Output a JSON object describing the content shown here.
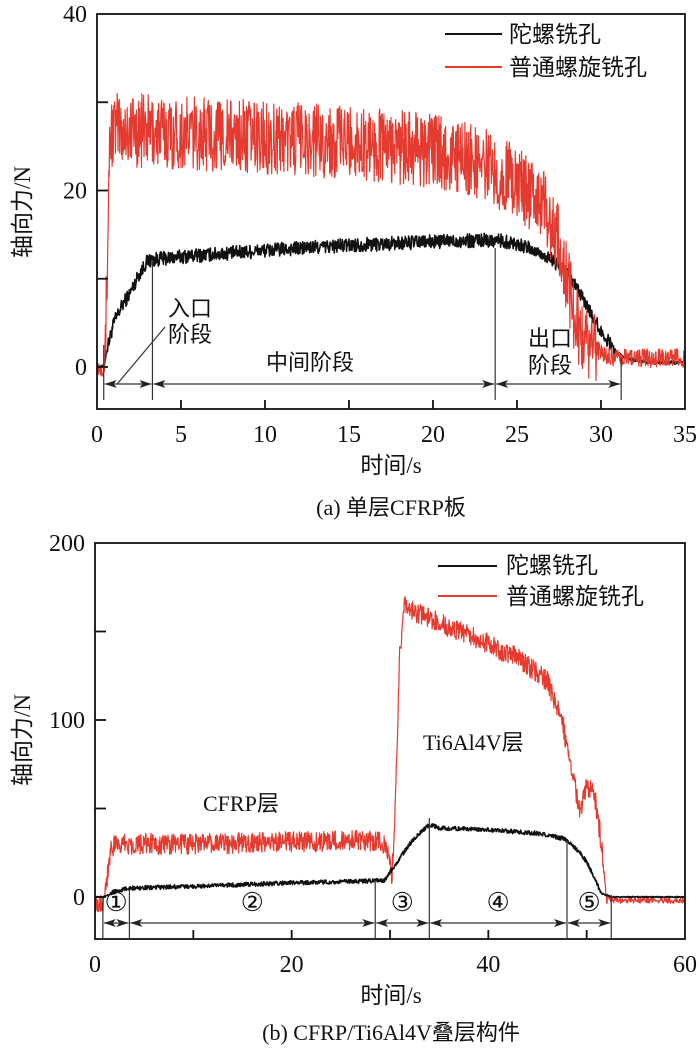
{
  "chart_data": [
    {
      "type": "line",
      "panel": "a",
      "caption": "(a) 单层CFRP板",
      "xlabel": "时间/s",
      "ylabel": "轴向力/N",
      "xlim": [
        0,
        35
      ],
      "ylim": [
        -5,
        40
      ],
      "xticks": [
        0,
        5,
        10,
        15,
        20,
        25,
        30,
        35
      ],
      "yticks": [
        0,
        20,
        40
      ],
      "grid": false,
      "legend": {
        "position": "top-right",
        "entries": [
          "陀螺铣孔",
          "普通螺旋铣孔"
        ]
      },
      "series": [
        {
          "name": "陀螺铣孔",
          "color": "#111111",
          "noise": 0.8,
          "points": [
            [
              0,
              0
            ],
            [
              0.4,
              0
            ],
            [
              0.6,
              2
            ],
            [
              1.0,
              5
            ],
            [
              1.5,
              7
            ],
            [
              2.0,
              8.5
            ],
            [
              2.5,
              10.5
            ],
            [
              3.0,
              12
            ],
            [
              3.5,
              12.2
            ],
            [
              5,
              12.5
            ],
            [
              10,
              13.2
            ],
            [
              15,
              13.8
            ],
            [
              20,
              14.2
            ],
            [
              23.7,
              14.4
            ],
            [
              25,
              14
            ],
            [
              26,
              13.2
            ],
            [
              27,
              12.3
            ],
            [
              28,
              10.5
            ],
            [
              29,
              7.5
            ],
            [
              30,
              4
            ],
            [
              31,
              1.5
            ],
            [
              31.5,
              1
            ],
            [
              33,
              0.5
            ],
            [
              35,
              0.5
            ]
          ]
        },
        {
          "name": "普通螺旋铣孔",
          "color": "#e53a2f",
          "noise": 4.2,
          "points": [
            [
              0,
              0
            ],
            [
              0.45,
              0
            ],
            [
              0.6,
              10
            ],
            [
              0.75,
              26
            ],
            [
              1,
              27
            ],
            [
              5,
              26.5
            ],
            [
              10,
              26
            ],
            [
              15,
              25.5
            ],
            [
              20,
              24.5
            ],
            [
              23,
              23
            ],
            [
              25,
              21
            ],
            [
              26.5,
              18.5
            ],
            [
              27.5,
              14
            ],
            [
              28,
              10
            ],
            [
              28.5,
              5
            ],
            [
              29,
              3
            ],
            [
              30,
              1.6
            ],
            [
              31,
              1
            ],
            [
              35,
              1
            ]
          ]
        }
      ],
      "annotations": [
        {
          "text_lines": [
            "入口",
            "阶段"
          ],
          "stage": "entry",
          "x_range": [
            0.4,
            3.3
          ]
        },
        {
          "text_lines": [
            "中间阶段"
          ],
          "stage": "middle",
          "x_range": [
            3.3,
            23.7
          ]
        },
        {
          "text_lines": [
            "出口",
            "阶段"
          ],
          "stage": "exit",
          "x_range": [
            23.7,
            31.2
          ]
        }
      ]
    },
    {
      "type": "line",
      "panel": "b",
      "caption": "(b) CFRP/Ti6Al4V叠层构件",
      "xlabel": "时间/s",
      "ylabel": "轴向力/N",
      "xlim": [
        0,
        60
      ],
      "ylim": [
        -25,
        200
      ],
      "xticks": [
        0,
        20,
        40,
        60
      ],
      "xminor_ticks": [
        10,
        30,
        50
      ],
      "yticks": [
        0,
        100,
        200
      ],
      "yminor_ticks": [
        50,
        150
      ],
      "grid": false,
      "legend": {
        "position": "top-right",
        "entries": [
          "陀螺铣孔",
          "普通螺旋铣孔"
        ]
      },
      "series": [
        {
          "name": "陀螺铣孔",
          "color": "#111111",
          "noise": 1.2,
          "points": [
            [
              0,
              0
            ],
            [
              0.8,
              0
            ],
            [
              2,
              3
            ],
            [
              3.5,
              5
            ],
            [
              10,
              6
            ],
            [
              20,
              8
            ],
            [
              28,
              9
            ],
            [
              29.5,
              9.5
            ],
            [
              30,
              14
            ],
            [
              31,
              22
            ],
            [
              32,
              30
            ],
            [
              33,
              36
            ],
            [
              34,
              41
            ],
            [
              35,
              39
            ],
            [
              40,
              38
            ],
            [
              45,
              36
            ],
            [
              47.7,
              33
            ],
            [
              49,
              27
            ],
            [
              50,
              20
            ],
            [
              51,
              8
            ],
            [
              51.5,
              2
            ],
            [
              52.5,
              0
            ],
            [
              60,
              0
            ]
          ]
        },
        {
          "name": "普通螺旋铣孔",
          "color": "#e53a2f",
          "noise": 6,
          "points": [
            [
              0,
              -3
            ],
            [
              0.8,
              -3
            ],
            [
              1.2,
              10
            ],
            [
              1.6,
              28
            ],
            [
              3,
              30
            ],
            [
              10,
              30
            ],
            [
              20,
              31
            ],
            [
              29,
              32
            ],
            [
              29.8,
              25
            ],
            [
              30.2,
              12
            ],
            [
              30.6,
              60
            ],
            [
              31,
              140
            ],
            [
              31.5,
              165
            ],
            [
              33,
              160
            ],
            [
              38,
              148
            ],
            [
              43,
              135
            ],
            [
              46,
              122
            ],
            [
              47.5,
              100
            ],
            [
              48.5,
              70
            ],
            [
              49.3,
              48
            ],
            [
              50,
              62
            ],
            [
              50.8,
              58
            ],
            [
              51.5,
              30
            ],
            [
              52,
              3
            ],
            [
              52.5,
              -2
            ],
            [
              60,
              -2
            ]
          ]
        }
      ],
      "annotations": [
        {
          "text": "CFRP层"
        },
        {
          "text": "Ti6Al4V层"
        }
      ],
      "stages": [
        {
          "label": "①",
          "x_range": [
            0.8,
            3.5
          ]
        },
        {
          "label": "②",
          "x_range": [
            3.5,
            28.5
          ]
        },
        {
          "label": "③",
          "x_range": [
            28.5,
            34
          ]
        },
        {
          "label": "④",
          "x_range": [
            34,
            48
          ]
        },
        {
          "label": "⑤",
          "x_range": [
            48,
            52.5
          ]
        }
      ]
    }
  ]
}
